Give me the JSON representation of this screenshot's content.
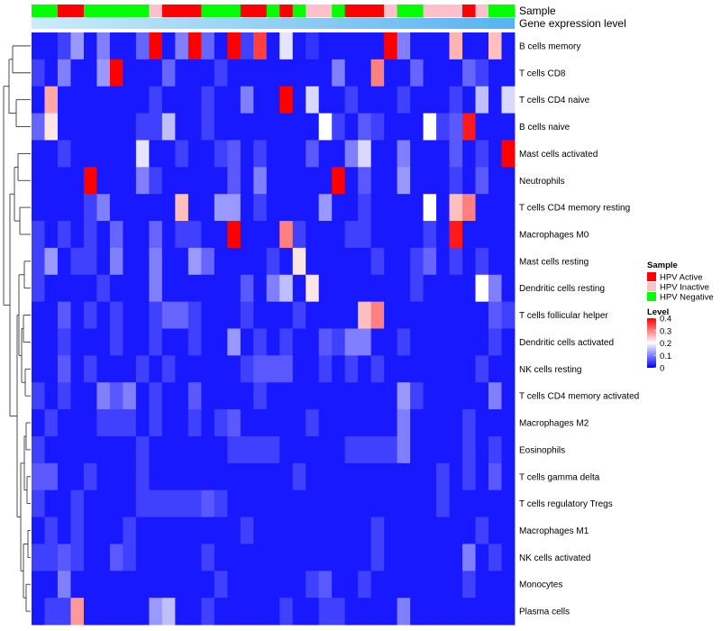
{
  "chart_data": {
    "type": "heatmap",
    "annotation_labels": {
      "sample": "Sample",
      "gene_expression": "Gene expression level"
    },
    "rows": [
      "B cells memory",
      "T cells CD8",
      "T cells CD4 naive",
      "B cells naive",
      "Mast cells activated",
      "Neutrophils",
      "T cells CD4 memory resting",
      "Macrophages M0",
      "Mast cells resting",
      "Dendritic cells resting",
      "T cells follicular helper",
      "Dendritic cells activated",
      "NK cells resting",
      "T cells CD4 memory activated",
      "Macrophages M2",
      "Eosinophils",
      "T cells gamma delta",
      "T cells regulatory  Tregs",
      "Macrophages M1",
      "NK cells activated",
      "Monocytes",
      "Plasma cells"
    ],
    "sample_groups": [
      "HPV Negative",
      "HPV Negative",
      "HPV Active",
      "HPV Active",
      "HPV Negative",
      "HPV Negative",
      "HPV Negative",
      "HPV Negative",
      "HPV Negative",
      "HPV Inactive",
      "HPV Active",
      "HPV Active",
      "HPV Active",
      "HPV Negative",
      "HPV Negative",
      "HPV Negative",
      "HPV Active",
      "HPV Active",
      "HPV Negative",
      "HPV Active",
      "HPV Negative",
      "HPV Inactive",
      "HPV Inactive",
      "HPV Negative",
      "HPV Active",
      "HPV Active",
      "HPV Active",
      "HPV Inactive",
      "HPV Negative",
      "HPV Negative",
      "HPV Inactive",
      "HPV Inactive",
      "HPV Inactive",
      "HPV Active",
      "HPV Inactive",
      "HPV Negative",
      "HPV Negative"
    ],
    "values": [
      [
        0.02,
        0.02,
        0.05,
        0.12,
        0.02,
        0.1,
        0.02,
        0.02,
        0.08,
        0.4,
        0.02,
        0.1,
        0.4,
        0.08,
        0.02,
        0.4,
        0.05,
        0.35,
        0.02,
        0.18,
        0.02,
        0.04,
        0.02,
        0.02,
        0.02,
        0.02,
        0.02,
        0.4,
        0.1,
        0.02,
        0.02,
        0.02,
        0.26,
        0.02,
        0.02,
        0.25,
        0.02
      ],
      [
        0.05,
        0.02,
        0.1,
        0.02,
        0.02,
        0.12,
        0.4,
        0.02,
        0.02,
        0.02,
        0.08,
        0.02,
        0.02,
        0.02,
        0.05,
        0.02,
        0.02,
        0.02,
        0.02,
        0.02,
        0.02,
        0.02,
        0.02,
        0.1,
        0.02,
        0.02,
        0.3,
        0.02,
        0.02,
        0.08,
        0.02,
        0.02,
        0.02,
        0.08,
        0.05,
        0.02,
        0.02
      ],
      [
        0.02,
        0.27,
        0.02,
        0.02,
        0.02,
        0.02,
        0.02,
        0.02,
        0.02,
        0.05,
        0.02,
        0.02,
        0.02,
        0.05,
        0.02,
        0.02,
        0.1,
        0.02,
        0.02,
        0.4,
        0.02,
        0.17,
        0.02,
        0.02,
        0.05,
        0.02,
        0.02,
        0.02,
        0.05,
        0.02,
        0.02,
        0.02,
        0.05,
        0.02,
        0.15,
        0.02,
        0.17
      ],
      [
        0.08,
        0.22,
        0.02,
        0.02,
        0.02,
        0.02,
        0.02,
        0.02,
        0.05,
        0.05,
        0.15,
        0.02,
        0.02,
        0.05,
        0.02,
        0.02,
        0.02,
        0.02,
        0.02,
        0.02,
        0.02,
        0.02,
        0.2,
        0.05,
        0.02,
        0.07,
        0.05,
        0.02,
        0.02,
        0.02,
        0.2,
        0.05,
        0.07,
        0.38,
        0.02,
        0.02,
        0.02
      ],
      [
        0.02,
        0.02,
        0.05,
        0.02,
        0.02,
        0.02,
        0.02,
        0.02,
        0.18,
        0.02,
        0.02,
        0.05,
        0.02,
        0.02,
        0.05,
        0.07,
        0.02,
        0.05,
        0.02,
        0.02,
        0.02,
        0.07,
        0.02,
        0.02,
        0.1,
        0.17,
        0.02,
        0.02,
        0.1,
        0.02,
        0.02,
        0.02,
        0.07,
        0.02,
        0.05,
        0.02,
        0.4
      ],
      [
        0.02,
        0.02,
        0.02,
        0.02,
        0.4,
        0.02,
        0.02,
        0.02,
        0.1,
        0.05,
        0.02,
        0.02,
        0.02,
        0.02,
        0.02,
        0.07,
        0.02,
        0.1,
        0.02,
        0.02,
        0.02,
        0.02,
        0.02,
        0.4,
        0.02,
        0.07,
        0.02,
        0.02,
        0.12,
        0.02,
        0.02,
        0.02,
        0.05,
        0.02,
        0.07,
        0.02,
        0.02
      ],
      [
        0.02,
        0.02,
        0.02,
        0.02,
        0.05,
        0.1,
        0.02,
        0.02,
        0.02,
        0.02,
        0.02,
        0.25,
        0.02,
        0.02,
        0.12,
        0.12,
        0.02,
        0.05,
        0.02,
        0.02,
        0.02,
        0.02,
        0.12,
        0.02,
        0.02,
        0.05,
        0.02,
        0.02,
        0.02,
        0.02,
        0.2,
        0.02,
        0.25,
        0.3,
        0.02,
        0.02,
        0.02
      ],
      [
        0.05,
        0.02,
        0.05,
        0.02,
        0.05,
        0.02,
        0.08,
        0.02,
        0.02,
        0.08,
        0.02,
        0.05,
        0.05,
        0.02,
        0.02,
        0.4,
        0.02,
        0.02,
        0.02,
        0.3,
        0.05,
        0.02,
        0.02,
        0.02,
        0.05,
        0.05,
        0.02,
        0.02,
        0.02,
        0.02,
        0.05,
        0.02,
        0.38,
        0.02,
        0.02,
        0.02,
        0.02
      ],
      [
        0.05,
        0.12,
        0.02,
        0.05,
        0.05,
        0.02,
        0.1,
        0.02,
        0.02,
        0.1,
        0.02,
        0.02,
        0.12,
        0.08,
        0.02,
        0.02,
        0.02,
        0.02,
        0.05,
        0.02,
        0.22,
        0.02,
        0.02,
        0.02,
        0.02,
        0.02,
        0.05,
        0.02,
        0.02,
        0.05,
        0.08,
        0.02,
        0.05,
        0.02,
        0.05,
        0.02,
        0.02
      ],
      [
        0.05,
        0.02,
        0.02,
        0.02,
        0.02,
        0.05,
        0.02,
        0.02,
        0.02,
        0.1,
        0.02,
        0.02,
        0.02,
        0.02,
        0.02,
        0.02,
        0.07,
        0.02,
        0.1,
        0.15,
        0.02,
        0.22,
        0.02,
        0.02,
        0.02,
        0.02,
        0.02,
        0.02,
        0.02,
        0.05,
        0.02,
        0.02,
        0.02,
        0.02,
        0.2,
        0.1,
        0.02
      ],
      [
        0.02,
        0.02,
        0.07,
        0.02,
        0.05,
        0.02,
        0.05,
        0.02,
        0.02,
        0.05,
        0.08,
        0.08,
        0.05,
        0.02,
        0.02,
        0.02,
        0.05,
        0.02,
        0.02,
        0.02,
        0.05,
        0.02,
        0.02,
        0.02,
        0.02,
        0.25,
        0.3,
        0.02,
        0.02,
        0.02,
        0.02,
        0.02,
        0.02,
        0.02,
        0.02,
        0.07,
        0.05
      ],
      [
        0.02,
        0.02,
        0.05,
        0.02,
        0.02,
        0.02,
        0.05,
        0.02,
        0.02,
        0.05,
        0.02,
        0.02,
        0.05,
        0.02,
        0.02,
        0.12,
        0.02,
        0.05,
        0.02,
        0.05,
        0.02,
        0.02,
        0.07,
        0.05,
        0.1,
        0.1,
        0.02,
        0.02,
        0.05,
        0.02,
        0.02,
        0.02,
        0.02,
        0.02,
        0.02,
        0.05,
        0.02
      ],
      [
        0.02,
        0.02,
        0.07,
        0.02,
        0.05,
        0.02,
        0.02,
        0.02,
        0.05,
        0.02,
        0.05,
        0.02,
        0.02,
        0.02,
        0.02,
        0.02,
        0.05,
        0.07,
        0.07,
        0.07,
        0.02,
        0.02,
        0.05,
        0.02,
        0.05,
        0.02,
        0.05,
        0.02,
        0.02,
        0.02,
        0.02,
        0.02,
        0.02,
        0.02,
        0.05,
        0.02,
        0.02
      ],
      [
        0.05,
        0.02,
        0.05,
        0.02,
        0.02,
        0.1,
        0.07,
        0.1,
        0.02,
        0.05,
        0.02,
        0.02,
        0.07,
        0.02,
        0.02,
        0.02,
        0.02,
        0.05,
        0.02,
        0.02,
        0.02,
        0.02,
        0.02,
        0.02,
        0.02,
        0.02,
        0.02,
        0.02,
        0.12,
        0.05,
        0.02,
        0.02,
        0.02,
        0.02,
        0.02,
        0.1,
        0.02
      ],
      [
        0.02,
        0.05,
        0.02,
        0.02,
        0.02,
        0.05,
        0.05,
        0.05,
        0.02,
        0.05,
        0.02,
        0.02,
        0.05,
        0.02,
        0.05,
        0.07,
        0.02,
        0.02,
        0.02,
        0.02,
        0.02,
        0.05,
        0.02,
        0.02,
        0.02,
        0.02,
        0.02,
        0.02,
        0.1,
        0.02,
        0.02,
        0.02,
        0.02,
        0.05,
        0.02,
        0.02,
        0.02
      ],
      [
        0.05,
        0.02,
        0.02,
        0.02,
        0.02,
        0.02,
        0.02,
        0.02,
        0.05,
        0.02,
        0.02,
        0.02,
        0.02,
        0.02,
        0.02,
        0.05,
        0.05,
        0.05,
        0.05,
        0.02,
        0.02,
        0.02,
        0.02,
        0.02,
        0.05,
        0.05,
        0.05,
        0.05,
        0.1,
        0.02,
        0.02,
        0.02,
        0.02,
        0.05,
        0.02,
        0.05,
        0.02
      ],
      [
        0.07,
        0.07,
        0.02,
        0.02,
        0.05,
        0.02,
        0.02,
        0.02,
        0.05,
        0.02,
        0.02,
        0.02,
        0.02,
        0.02,
        0.02,
        0.02,
        0.02,
        0.02,
        0.02,
        0.02,
        0.05,
        0.02,
        0.02,
        0.02,
        0.02,
        0.02,
        0.02,
        0.02,
        0.02,
        0.02,
        0.02,
        0.05,
        0.02,
        0.05,
        0.02,
        0.07,
        0.02
      ],
      [
        0.05,
        0.02,
        0.02,
        0.05,
        0.02,
        0.02,
        0.02,
        0.02,
        0.05,
        0.05,
        0.05,
        0.05,
        0.05,
        0.07,
        0.05,
        0.02,
        0.02,
        0.02,
        0.02,
        0.02,
        0.02,
        0.02,
        0.02,
        0.02,
        0.02,
        0.02,
        0.02,
        0.02,
        0.02,
        0.02,
        0.02,
        0.05,
        0.02,
        0.02,
        0.02,
        0.02,
        0.02
      ],
      [
        0.02,
        0.05,
        0.02,
        0.05,
        0.02,
        0.02,
        0.02,
        0.05,
        0.02,
        0.02,
        0.02,
        0.02,
        0.02,
        0.02,
        0.02,
        0.02,
        0.05,
        0.02,
        0.02,
        0.02,
        0.02,
        0.02,
        0.02,
        0.02,
        0.02,
        0.02,
        0.05,
        0.02,
        0.02,
        0.02,
        0.02,
        0.02,
        0.02,
        0.02,
        0.05,
        0.02,
        0.02
      ],
      [
        0.05,
        0.05,
        0.07,
        0.05,
        0.02,
        0.02,
        0.07,
        0.05,
        0.02,
        0.02,
        0.02,
        0.02,
        0.02,
        0.05,
        0.02,
        0.02,
        0.02,
        0.02,
        0.02,
        0.02,
        0.02,
        0.02,
        0.02,
        0.02,
        0.02,
        0.02,
        0.05,
        0.02,
        0.02,
        0.02,
        0.02,
        0.02,
        0.02,
        0.1,
        0.02,
        0.05,
        0.02
      ],
      [
        0.02,
        0.02,
        0.1,
        0.02,
        0.02,
        0.02,
        0.02,
        0.02,
        0.02,
        0.02,
        0.02,
        0.02,
        0.02,
        0.02,
        0.05,
        0.02,
        0.02,
        0.02,
        0.02,
        0.02,
        0.02,
        0.05,
        0.07,
        0.02,
        0.02,
        0.05,
        0.02,
        0.02,
        0.02,
        0.02,
        0.02,
        0.02,
        0.02,
        0.05,
        0.02,
        0.02,
        0.02
      ],
      [
        0.02,
        0.05,
        0.05,
        0.28,
        0.02,
        0.02,
        0.02,
        0.02,
        0.02,
        0.12,
        0.15,
        0.02,
        0.02,
        0.05,
        0.02,
        0.02,
        0.02,
        0.02,
        0.02,
        0.05,
        0.02,
        0.02,
        0.05,
        0.05,
        0.02,
        0.02,
        0.02,
        0.02,
        0.1,
        0.02,
        0.02,
        0.02,
        0.02,
        0.02,
        0.02,
        0.02,
        0.02
      ]
    ],
    "gene_expression_gradient": [
      "#ccecfa",
      "#56b4f0"
    ],
    "legend": {
      "sample_title": "Sample",
      "sample_groups": [
        {
          "label": "HPV Active",
          "color": "#ff0000"
        },
        {
          "label": "HPV Inactive",
          "color": "#ffc0cb"
        },
        {
          "label": "HPV Negative",
          "color": "#00ff00"
        }
      ],
      "level_title": "Level",
      "level_ticks": [
        0.4,
        0.3,
        0.2,
        0.1,
        0
      ],
      "level_range": [
        0,
        0.4
      ],
      "level_colors": [
        "#0000ff",
        "#ffffff",
        "#ff0000"
      ]
    },
    "dendrogram": "rows"
  }
}
